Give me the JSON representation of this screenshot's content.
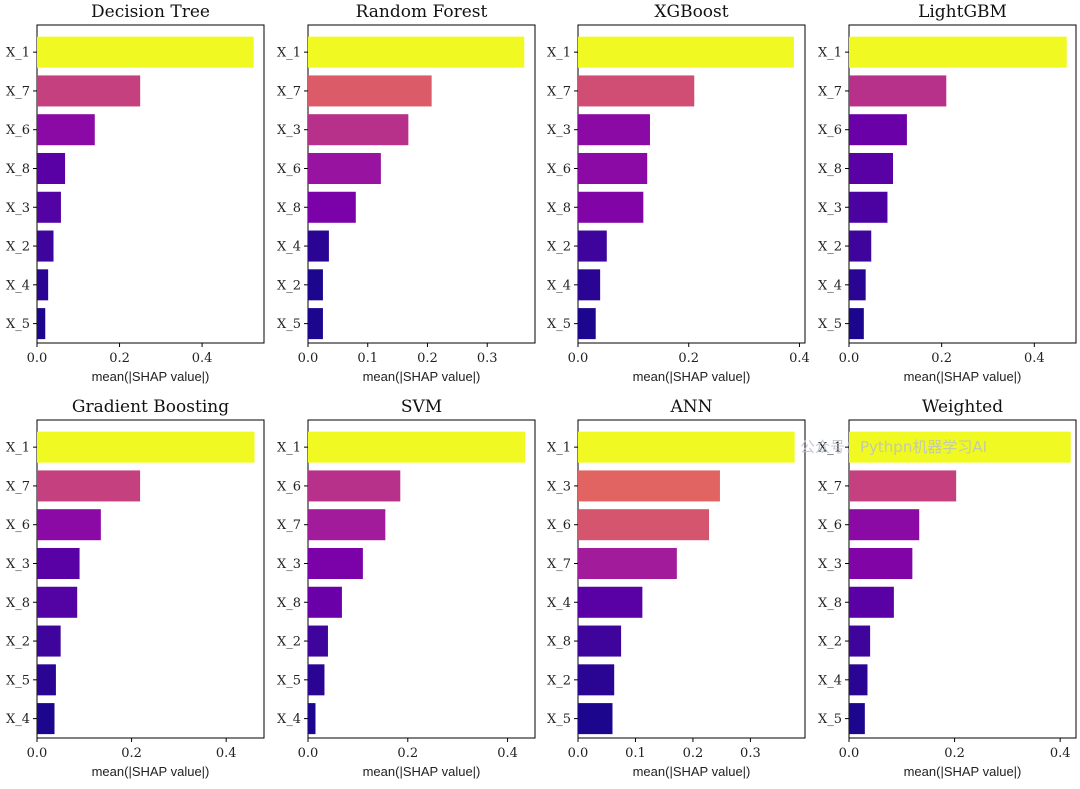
{
  "watermark": "公众号：Pythpn机器学习AI",
  "chart_data": [
    {
      "type": "bar",
      "orientation": "horizontal",
      "title": "Decision Tree",
      "xlabel": "mean(|SHAP value|)",
      "categories": [
        "X_1",
        "X_7",
        "X_6",
        "X_8",
        "X_3",
        "X_2",
        "X_4",
        "X_5"
      ],
      "values": [
        0.525,
        0.25,
        0.14,
        0.068,
        0.058,
        0.04,
        0.027,
        0.02
      ],
      "xlim": [
        0,
        0.55
      ],
      "xticks": [
        {
          "value": 0,
          "label": "0.0"
        },
        {
          "value": 0.2,
          "label": "0.2"
        },
        {
          "value": 0.4,
          "label": "0.4"
        }
      ],
      "colors": [
        "#f0f921",
        "#c5407e",
        "#8b0aa5",
        "#5901a5",
        "#5302a3",
        "#3e049c",
        "#2a0593",
        "#1d068e"
      ]
    },
    {
      "type": "bar",
      "orientation": "horizontal",
      "title": "Random Forest",
      "xlabel": "mean(|SHAP value|)",
      "categories": [
        "X_1",
        "X_7",
        "X_3",
        "X_6",
        "X_8",
        "X_4",
        "X_2",
        "X_5"
      ],
      "values": [
        0.362,
        0.207,
        0.168,
        0.122,
        0.08,
        0.035,
        0.025,
        0.025
      ],
      "xlim": [
        0,
        0.38
      ],
      "xticks": [
        {
          "value": 0,
          "label": "0.0"
        },
        {
          "value": 0.1,
          "label": "0.1"
        },
        {
          "value": 0.2,
          "label": "0.2"
        },
        {
          "value": 0.3,
          "label": "0.3"
        }
      ],
      "colors": [
        "#f0f921",
        "#db5c68",
        "#b7318a",
        "#9814a0",
        "#7a02a8",
        "#2a0593",
        "#1d068e",
        "#1d068e"
      ]
    },
    {
      "type": "bar",
      "orientation": "horizontal",
      "title": "XGBoost",
      "xlabel": "mean(|SHAP value|)",
      "categories": [
        "X_1",
        "X_7",
        "X_3",
        "X_6",
        "X_8",
        "X_2",
        "X_4",
        "X_5"
      ],
      "values": [
        0.39,
        0.21,
        0.13,
        0.125,
        0.118,
        0.052,
        0.04,
        0.032
      ],
      "xlim": [
        0,
        0.41
      ],
      "xticks": [
        {
          "value": 0,
          "label": "0.0"
        },
        {
          "value": 0.2,
          "label": "0.2"
        },
        {
          "value": 0.4,
          "label": "0.4"
        }
      ],
      "colors": [
        "#f0f921",
        "#d04e73",
        "#8b0aa5",
        "#8b0aa5",
        "#8104a7",
        "#3e049c",
        "#2a0593",
        "#1d068e"
      ]
    },
    {
      "type": "bar",
      "orientation": "horizontal",
      "title": "LightGBM",
      "xlabel": "mean(|SHAP value|)",
      "categories": [
        "X_1",
        "X_7",
        "X_6",
        "X_8",
        "X_3",
        "X_2",
        "X_4",
        "X_5"
      ],
      "values": [
        0.47,
        0.21,
        0.125,
        0.095,
        0.083,
        0.048,
        0.036,
        0.032
      ],
      "xlim": [
        0,
        0.49
      ],
      "xticks": [
        {
          "value": 0,
          "label": "0.0"
        },
        {
          "value": 0.2,
          "label": "0.2"
        },
        {
          "value": 0.4,
          "label": "0.4"
        }
      ],
      "colors": [
        "#f0f921",
        "#b7318a",
        "#6a00a8",
        "#5901a5",
        "#4c02a1",
        "#3e049c",
        "#2a0593",
        "#1d068e"
      ]
    },
    {
      "type": "bar",
      "orientation": "horizontal",
      "title": "Gradient Boosting",
      "xlabel": "mean(|SHAP value|)",
      "categories": [
        "X_1",
        "X_7",
        "X_6",
        "X_3",
        "X_8",
        "X_2",
        "X_5",
        "X_4"
      ],
      "values": [
        0.46,
        0.218,
        0.135,
        0.09,
        0.085,
        0.05,
        0.04,
        0.037
      ],
      "xlim": [
        0,
        0.48
      ],
      "xticks": [
        {
          "value": 0,
          "label": "0.0"
        },
        {
          "value": 0.2,
          "label": "0.2"
        },
        {
          "value": 0.4,
          "label": "0.4"
        }
      ],
      "colors": [
        "#f0f921",
        "#c5407e",
        "#8b0aa5",
        "#5901a5",
        "#5302a3",
        "#3e049c",
        "#2a0593",
        "#1d068e"
      ]
    },
    {
      "type": "bar",
      "orientation": "horizontal",
      "title": "SVM",
      "xlabel": "mean(|SHAP value|)",
      "categories": [
        "X_1",
        "X_6",
        "X_7",
        "X_3",
        "X_8",
        "X_2",
        "X_5",
        "X_4"
      ],
      "values": [
        0.435,
        0.185,
        0.155,
        0.11,
        0.068,
        0.04,
        0.033,
        0.015
      ],
      "xlim": [
        0,
        0.455
      ],
      "xticks": [
        {
          "value": 0,
          "label": "0.0"
        },
        {
          "value": 0.2,
          "label": "0.2"
        },
        {
          "value": 0.4,
          "label": "0.4"
        }
      ],
      "colors": [
        "#f0f921",
        "#b7318a",
        "#a11b9b",
        "#7a02a8",
        "#6a00a8",
        "#3e049c",
        "#2a0593",
        "#1d068e"
      ]
    },
    {
      "type": "bar",
      "orientation": "horizontal",
      "title": "ANN",
      "xlabel": "mean(|SHAP value|)",
      "categories": [
        "X_1",
        "X_3",
        "X_6",
        "X_7",
        "X_4",
        "X_8",
        "X_2",
        "X_5"
      ],
      "values": [
        0.377,
        0.247,
        0.228,
        0.172,
        0.112,
        0.075,
        0.063,
        0.06
      ],
      "xlim": [
        0,
        0.395
      ],
      "xticks": [
        {
          "value": 0,
          "label": "0.0"
        },
        {
          "value": 0.1,
          "label": "0.1"
        },
        {
          "value": 0.2,
          "label": "0.2"
        },
        {
          "value": 0.3,
          "label": "0.3"
        }
      ],
      "colors": [
        "#f0f921",
        "#e16462",
        "#d5546e",
        "#a11b9b",
        "#5901a5",
        "#3e049c",
        "#2a0593",
        "#1d068e"
      ]
    },
    {
      "type": "bar",
      "orientation": "horizontal",
      "title": "Weighted",
      "xlabel": "mean(|SHAP value|)",
      "categories": [
        "X_1",
        "X_7",
        "X_6",
        "X_3",
        "X_8",
        "X_2",
        "X_4",
        "X_5"
      ],
      "values": [
        0.42,
        0.203,
        0.133,
        0.12,
        0.085,
        0.04,
        0.035,
        0.03
      ],
      "xlim": [
        0,
        0.43
      ],
      "xticks": [
        {
          "value": 0,
          "label": "0.0"
        },
        {
          "value": 0.2,
          "label": "0.2"
        },
        {
          "value": 0.4,
          "label": "0.4"
        }
      ],
      "colors": [
        "#f0f921",
        "#c5407e",
        "#8b0aa5",
        "#8104a7",
        "#5901a5",
        "#3e049c",
        "#2a0593",
        "#1d068e"
      ]
    }
  ]
}
